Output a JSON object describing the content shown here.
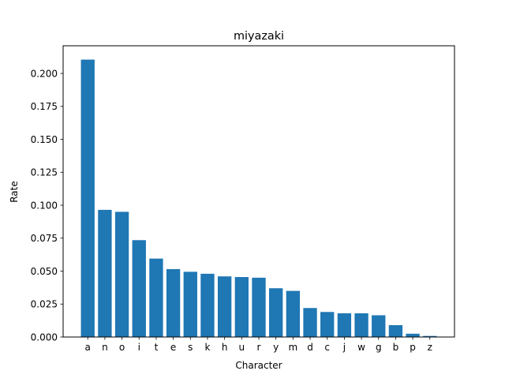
{
  "chart_data": {
    "type": "bar",
    "title": "miyazaki",
    "xlabel": "Character",
    "ylabel": "Rate",
    "ylim": [
      0,
      0.221
    ],
    "yticks": [
      0.0,
      0.025,
      0.05,
      0.075,
      0.1,
      0.125,
      0.15,
      0.175,
      0.2
    ],
    "ytick_labels": [
      "0.000",
      "0.025",
      "0.050",
      "0.075",
      "0.100",
      "0.125",
      "0.150",
      "0.175",
      "0.200"
    ],
    "categories": [
      "a",
      "n",
      "o",
      "i",
      "t",
      "e",
      "s",
      "k",
      "h",
      "u",
      "r",
      "y",
      "m",
      "d",
      "c",
      "j",
      "w",
      "g",
      "b",
      "p",
      "z"
    ],
    "values": [
      0.2105,
      0.0965,
      0.095,
      0.0735,
      0.0595,
      0.0515,
      0.0495,
      0.048,
      0.046,
      0.0455,
      0.045,
      0.037,
      0.035,
      0.022,
      0.019,
      0.018,
      0.018,
      0.0165,
      0.009,
      0.0025,
      0.0008
    ],
    "bar_color": "#1f77b4",
    "grid": false,
    "legend": "none"
  }
}
